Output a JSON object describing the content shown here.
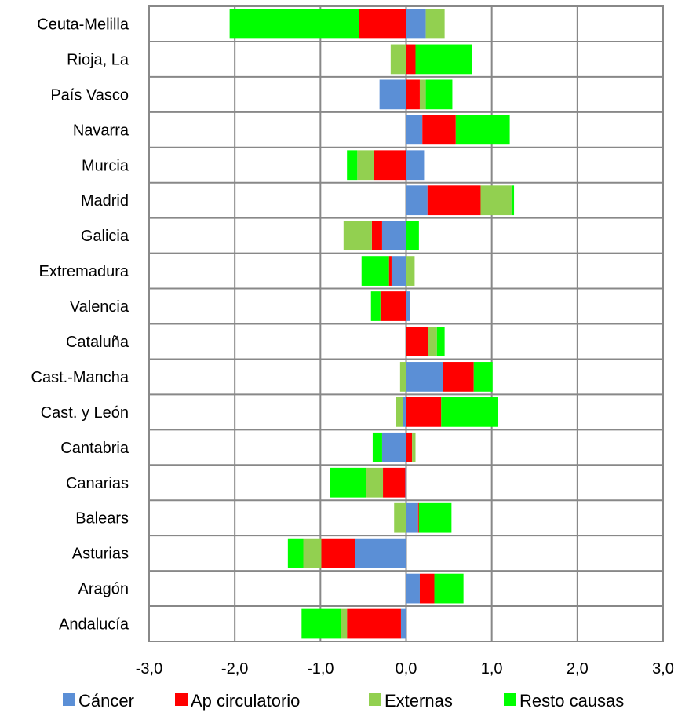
{
  "chart_data": {
    "type": "bar",
    "orientation": "horizontal",
    "stacked": true,
    "categories": [
      "Ceuta-Melilla",
      "Rioja, La",
      "País Vasco",
      "Navarra",
      "Murcia",
      "Madrid",
      "Galicia",
      "Extremadura",
      "Valencia",
      "Cataluña",
      "Cast.-Mancha",
      "Cast. y León",
      "Cantabria",
      "Canarias",
      "Balears",
      "Asturias",
      "Aragón",
      "Andalucía"
    ],
    "series": [
      {
        "name": "Cáncer",
        "color": "#5b8fd6",
        "values": [
          0.23,
          0.0,
          -0.31,
          0.19,
          0.21,
          0.25,
          -0.28,
          -0.17,
          0.05,
          0.0,
          0.43,
          -0.04,
          -0.28,
          -0.01,
          0.14,
          -0.6,
          0.16,
          -0.06
        ]
      },
      {
        "name": "Ap circulatorio",
        "color": "#ff0000",
        "values": [
          -0.55,
          0.11,
          0.16,
          0.39,
          -0.38,
          0.62,
          -0.12,
          -0.03,
          -0.3,
          0.26,
          0.36,
          0.41,
          0.07,
          -0.26,
          0.01,
          -0.39,
          0.17,
          -0.63
        ]
      },
      {
        "name": "Externas",
        "color": "#92d050",
        "values": [
          0.22,
          -0.18,
          0.07,
          0.0,
          -0.19,
          0.36,
          -0.33,
          0.1,
          0.0,
          0.1,
          -0.07,
          -0.08,
          0.04,
          -0.2,
          -0.14,
          -0.21,
          0.0,
          -0.07
        ]
      },
      {
        "name": "Resto causas",
        "color": "#00ff00",
        "values": [
          -1.51,
          0.66,
          0.31,
          0.63,
          -0.12,
          0.03,
          0.15,
          -0.32,
          -0.11,
          0.09,
          0.22,
          0.66,
          -0.11,
          -0.42,
          0.38,
          -0.18,
          0.34,
          -0.46
        ]
      }
    ],
    "xlim": [
      -3,
      3
    ],
    "xticks": [
      "-3,0",
      "-2,0",
      "-1,0",
      "0,0",
      "1,0",
      "2,0",
      "3,0"
    ],
    "xtick_values": [
      -3,
      -2,
      -1,
      0,
      1,
      2,
      3
    ],
    "grid": "vertical",
    "legend_position": "bottom",
    "title": "",
    "xlabel": "",
    "ylabel": ""
  }
}
